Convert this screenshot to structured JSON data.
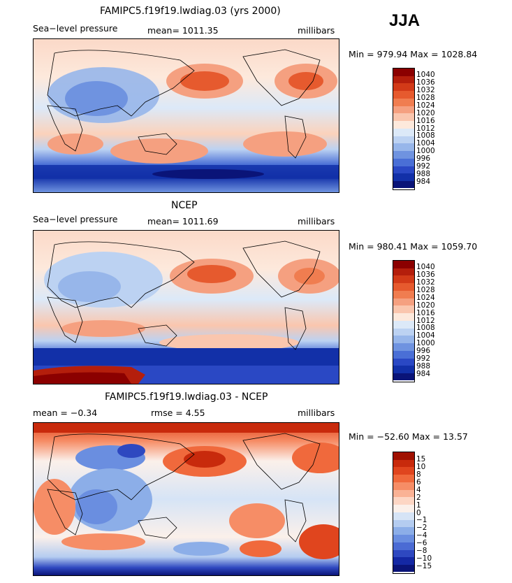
{
  "season": "JJA",
  "panels": [
    {
      "title": "FAMIPC5.f19f19.lwdiag.03 (yrs 2000)",
      "left_label": "Sea−level pressure",
      "center_label": "mean= 1011.35",
      "right_label": "millibars",
      "minmax": "Min = 979.94  Max = 1028.84",
      "colorbar_labels": [
        "1040",
        "1036",
        "1032",
        "1028",
        "1024",
        "1020",
        "1016",
        "1012",
        "1008",
        "1004",
        "1000",
        "996",
        "992",
        "988",
        "984"
      ]
    },
    {
      "title": "NCEP",
      "left_label": "Sea−level pressure",
      "center_label": "mean= 1011.69",
      "right_label": "millibars",
      "minmax": "Min = 980.41  Max = 1059.70",
      "colorbar_labels": [
        "1040",
        "1036",
        "1032",
        "1028",
        "1024",
        "1020",
        "1016",
        "1012",
        "1008",
        "1004",
        "1000",
        "996",
        "992",
        "988",
        "984"
      ]
    },
    {
      "title": "FAMIPC5.f19f19.lwdiag.03 - NCEP",
      "left_label": "mean =   −0.34",
      "center_label": "rmse =    4.55",
      "right_label": "millibars",
      "minmax": "Min = −52.60  Max =   13.57",
      "colorbar_labels": [
        "15",
        "10",
        "8",
        "6",
        "4",
        "2",
        "1",
        "0",
        "−1",
        "−2",
        "−4",
        "−6",
        "−8",
        "−10",
        "−15"
      ]
    }
  ],
  "colors": {
    "abs_scale": [
      "#8b0000",
      "#b41e0c",
      "#d23a18",
      "#e65a2e",
      "#f07d50",
      "#f5a080",
      "#fac6ae",
      "#fde9dc",
      "#dce9f8",
      "#bcd2f2",
      "#97b6ea",
      "#6f93e0",
      "#4a6fd6",
      "#2a48c4",
      "#1230a8",
      "#0a1478"
    ],
    "diff_scale": [
      "#a01000",
      "#c82a0c",
      "#e0451e",
      "#f0693c",
      "#f68d66",
      "#fab295",
      "#fdd6c4",
      "#fbf0ea",
      "#d6e4f6",
      "#b4ccf0",
      "#8caee8",
      "#6a8ee0",
      "#4b6bd4",
      "#2e48c0",
      "#1428a4",
      "#0a1478"
    ]
  }
}
